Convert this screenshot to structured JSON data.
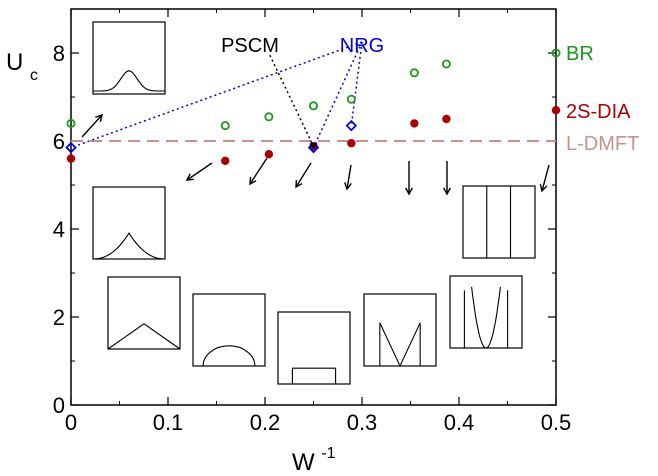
{
  "chart_data": {
    "type": "scatter",
    "xlabel": "W",
    "xlabel_sup": "-1",
    "ylabel": "U",
    "ylabel_sub": "c",
    "xlim": [
      0,
      0.5
    ],
    "ylim": [
      0,
      9
    ],
    "x_ticks": [
      0,
      0.1,
      0.2,
      0.3,
      0.4,
      0.5
    ],
    "x_tick_labels": [
      "0",
      "0.1",
      "0.2",
      "0.3",
      "0.4",
      "0.5"
    ],
    "y_ticks": [
      0,
      2,
      4,
      6,
      8
    ],
    "y_tick_labels": [
      "0",
      "2",
      "4",
      "6",
      "8"
    ],
    "grid": false,
    "legend": "none",
    "series": [
      {
        "name": "BR",
        "marker": "open-circle",
        "color": "#1a9a1a",
        "points": [
          [
            0.0,
            6.4
          ],
          [
            0.159,
            6.35
          ],
          [
            0.204,
            6.55
          ],
          [
            0.25,
            6.8
          ],
          [
            0.289,
            6.95
          ],
          [
            0.354,
            7.55
          ],
          [
            0.387,
            7.75
          ],
          [
            0.5,
            8.0
          ]
        ]
      },
      {
        "name": "2S-DIA",
        "marker": "filled-circle",
        "color": "#aa0000",
        "points": [
          [
            0.0,
            5.6
          ],
          [
            0.159,
            5.55
          ],
          [
            0.204,
            5.7
          ],
          [
            0.25,
            5.88
          ],
          [
            0.289,
            5.95
          ],
          [
            0.354,
            6.4
          ],
          [
            0.387,
            6.5
          ],
          [
            0.5,
            6.7
          ]
        ]
      },
      {
        "name": "NRG",
        "marker": "open-diamond",
        "color": "#0000ee",
        "points": [
          [
            0.0,
            5.85
          ],
          [
            0.25,
            5.85
          ],
          [
            0.289,
            6.35
          ]
        ]
      },
      {
        "name": "PSCM",
        "marker": "filled-triangle",
        "color": "#000000",
        "points": [
          [
            0.25,
            5.88
          ]
        ]
      }
    ],
    "reference_lines": [
      {
        "name": "L-DMFT",
        "y": 6.0,
        "style": "dashed",
        "color": "#c8928a"
      }
    ],
    "annotations": [
      {
        "text": "BR",
        "color": "#1a9a1a"
      },
      {
        "text": "2S-DIA",
        "color": "#aa0000"
      },
      {
        "text": "L-DMFT",
        "color": "#c8928a"
      },
      {
        "text": "PSCM",
        "color": "#000000"
      },
      {
        "text": "NRG",
        "color": "#0000ee"
      }
    ],
    "insets": [
      {
        "kind": "gaussian-dos"
      },
      {
        "kind": "triangle-peak-dos"
      },
      {
        "kind": "triangle-dos"
      },
      {
        "kind": "semicircle-dos"
      },
      {
        "kind": "flat-dos"
      },
      {
        "kind": "v-shape-dos"
      },
      {
        "kind": "parabola-dos"
      },
      {
        "kind": "delta-dos"
      }
    ]
  }
}
